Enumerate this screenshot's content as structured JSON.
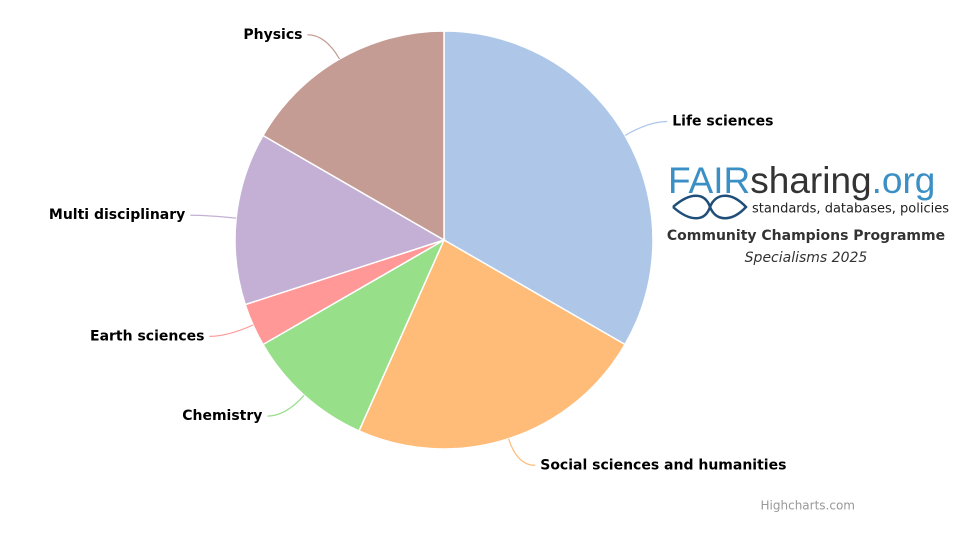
{
  "chart_data": {
    "type": "pie",
    "categories": [
      "Life sciences",
      "Social sciences and humanities",
      "Chemistry",
      "Earth sciences",
      "Multi disciplinary",
      "Physics"
    ],
    "values": [
      10,
      7,
      3,
      1,
      4,
      5
    ],
    "colors": [
      "#aec7e8",
      "#ffbb78",
      "#98df8a",
      "#ff9896",
      "#c5b0d5",
      "#c49c94"
    ],
    "credits": "Highcharts.com"
  },
  "logo": {
    "fair": "FAIR",
    "sharing": "sharing",
    "org": ".org",
    "tagline": "standards, databases, policies",
    "programme": "Community Champions Programme",
    "specialisms": "Specialisms 2025"
  }
}
